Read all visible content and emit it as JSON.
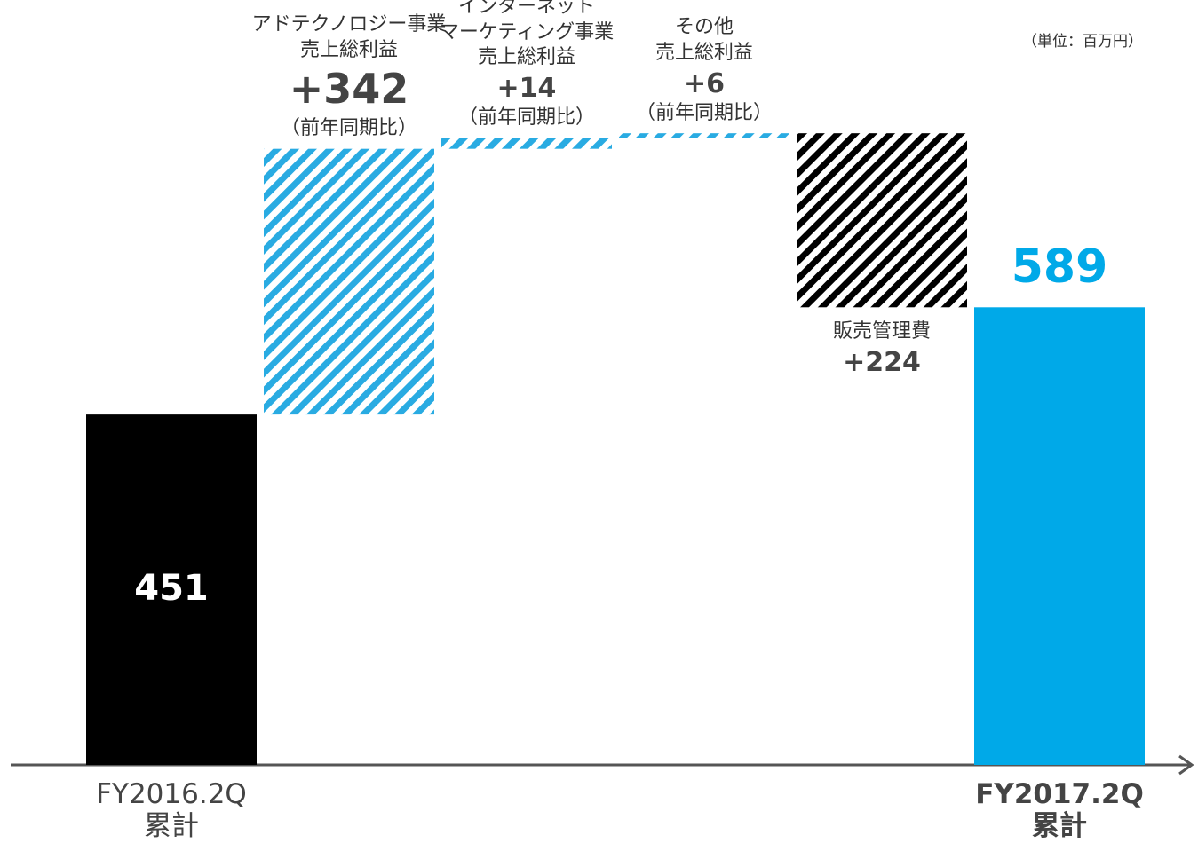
{
  "chart_data": {
    "type": "waterfall",
    "unit_note": "（単位：百万円）",
    "categories": [
      "FY2016.2Q\n累計",
      "アドテクノロジー事業\n売上総利益",
      "インターネット\nマーケティング事業\n売上総利益",
      "その他\n売上総利益",
      "販売管理費",
      "FY2017.2Q\n累計"
    ],
    "values": [
      451,
      342,
      14,
      6,
      -224,
      589
    ],
    "value_labels": [
      "451",
      "+342",
      "+14",
      "+6",
      "+224",
      "589"
    ],
    "note": "（前年同期比）",
    "colors": [
      "#000000",
      "#29abe2",
      "#29abe2",
      "#29abe2",
      "#000000",
      "#00a9e8"
    ],
    "hatch": [
      false,
      true,
      true,
      true,
      true,
      false
    ],
    "ylim": [
      0,
      900
    ]
  }
}
